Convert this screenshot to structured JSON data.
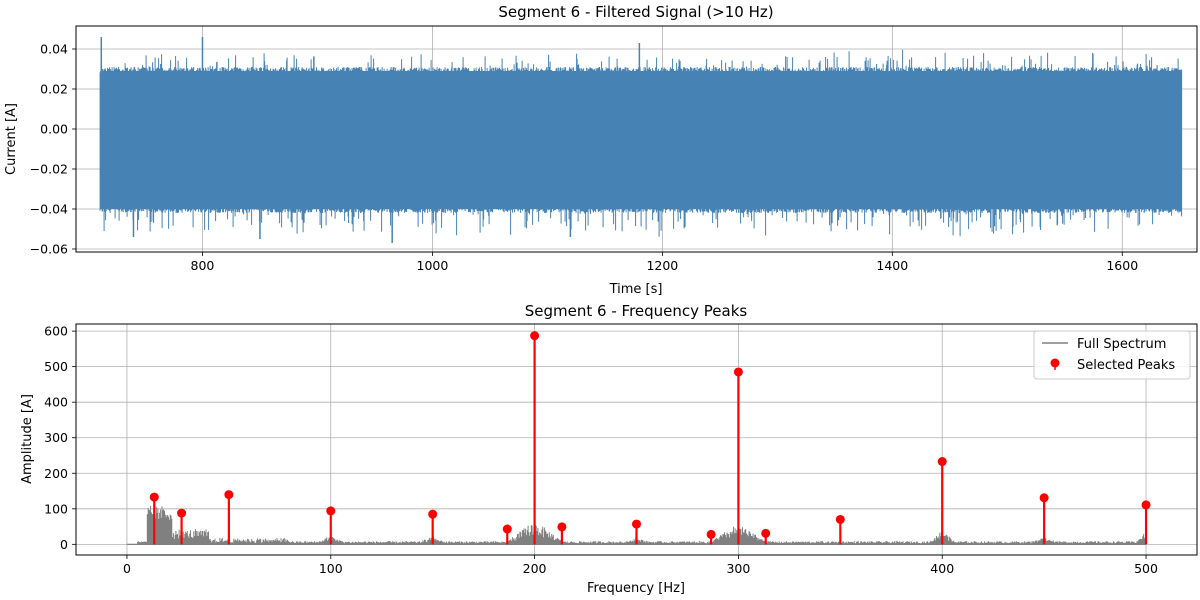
{
  "colors": {
    "signal": "#4682b4",
    "spectrum": "#808080",
    "peaks": "#ff0000",
    "grid": "#b0b0b0",
    "axes": "#000000"
  },
  "chart_data": [
    {
      "type": "line",
      "title": "Segment 6 - Filtered Signal (>10 Hz)",
      "xlabel": "Time [s]",
      "ylabel": "Current [A]",
      "xlim": [
        690,
        1665
      ],
      "ylim": [
        -0.0615,
        0.0515
      ],
      "xticks": [
        800,
        1000,
        1200,
        1400,
        1600
      ],
      "yticks": [
        -0.06,
        -0.04,
        -0.02,
        0.0,
        0.02,
        0.04
      ],
      "xtick_labels": [
        "800",
        "1000",
        "1200",
        "1400",
        "1600"
      ],
      "ytick_labels": [
        "−0.06",
        "−0.04",
        "−0.02",
        "0.00",
        "0.02",
        "0.04"
      ],
      "grid": true,
      "series": [
        {
          "x_range": [
            711,
            1652
          ],
          "typical_band": [
            -0.042,
            0.031
          ],
          "max": 0.046,
          "min": -0.057
        }
      ]
    },
    {
      "type": "line",
      "title": "Segment 6 - Frequency Peaks",
      "xlabel": "Frequency [Hz]",
      "ylabel": "Amplitude [A]",
      "xlim": [
        -25,
        525
      ],
      "ylim": [
        -30,
        620
      ],
      "xticks": [
        0,
        100,
        200,
        300,
        400,
        500
      ],
      "yticks": [
        0,
        100,
        200,
        300,
        400,
        500,
        600
      ],
      "xtick_labels": [
        "0",
        "100",
        "200",
        "300",
        "400",
        "500"
      ],
      "ytick_labels": [
        "0",
        "100",
        "200",
        "300",
        "400",
        "500",
        "600"
      ],
      "grid": true,
      "legend_position": "top-right",
      "series": [
        {
          "name": "Full Spectrum",
          "kind": "line"
        },
        {
          "name": "Selected Peaks",
          "kind": "stem",
          "x": [
            13.4,
            26.8,
            50,
            100,
            150,
            186.6,
            200,
            213.4,
            250,
            286.6,
            300,
            313.4,
            350,
            400,
            450,
            500
          ],
          "y": [
            133,
            88,
            140,
            94,
            85,
            43,
            587,
            49,
            57,
            28,
            485,
            31,
            70,
            233,
            131,
            111
          ]
        }
      ]
    }
  ]
}
